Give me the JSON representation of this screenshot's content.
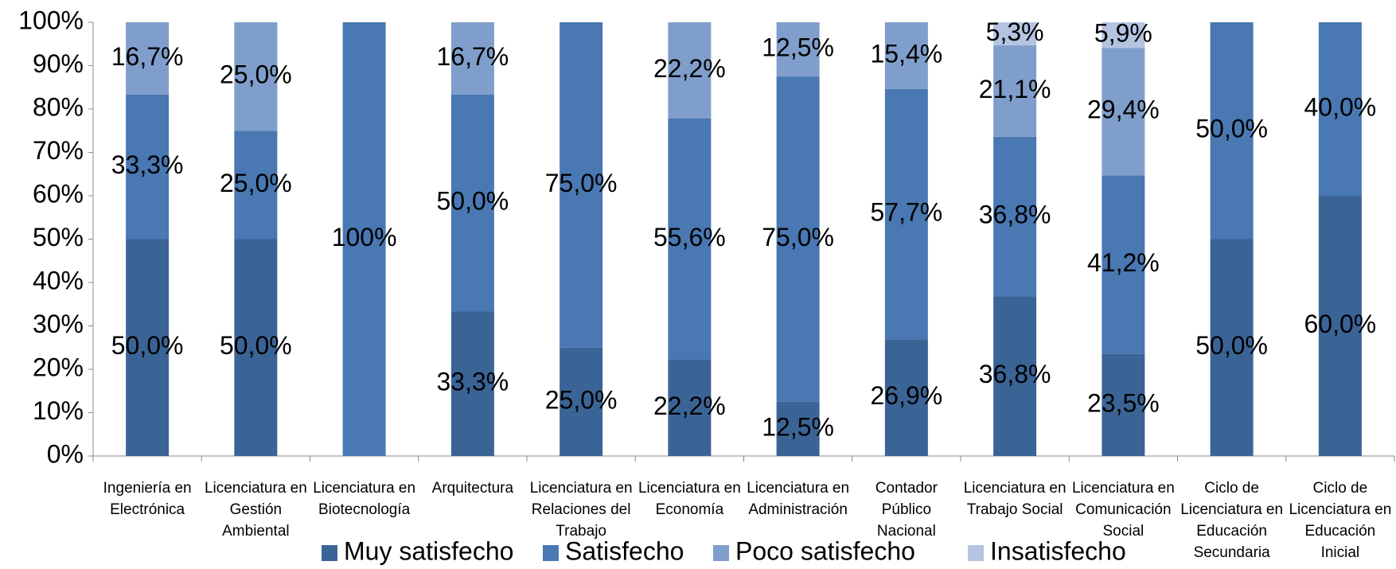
{
  "chart_data": {
    "type": "stacked_bar",
    "categories": [
      "Ingeniería en Electrónica",
      "Licenciatura en Gestión Ambiental",
      "Licenciatura en Biotecnología",
      "Arquitectura",
      "Licenciatura en Relaciones del Trabajo",
      "Licenciatura en Economía",
      "Licenciatura en Administración",
      "Contador Público Nacional",
      "Licenciatura en Trabajo Social",
      "Licenciatura en Comunicación Social",
      "Ciclo de Licenciatura en Educación Secundaria",
      "Ciclo de Licenciatura en Educación Inicial"
    ],
    "series": [
      {
        "name": "Muy satisfecho",
        "color": "#3b6496",
        "values": [
          50,
          50,
          null,
          33.3,
          25,
          22.2,
          12.5,
          26.9,
          36.8,
          23.5,
          50,
          60
        ],
        "value_labels": [
          "50,0%",
          "50,0%",
          null,
          "33,3%",
          "25,0%",
          "22,2%",
          "12,5%",
          "26,9%",
          "36,8%",
          "23,5%",
          "50,0%",
          "60,0%"
        ]
      },
      {
        "name": "Satisfecho",
        "color": "#4978b2",
        "values": [
          33.3,
          25,
          100,
          50,
          75,
          55.6,
          75,
          57.7,
          36.8,
          41.2,
          50,
          40
        ],
        "value_labels": [
          "33,3%",
          "25,0%",
          "100%",
          "50,0%",
          "75,0%",
          "55,6%",
          "75,0%",
          "57,7%",
          "36,8%",
          "41,2%",
          "50,0%",
          "40,0%"
        ]
      },
      {
        "name": "Poco satisfecho",
        "color": "#809ecb",
        "values": [
          16.7,
          25,
          null,
          16.7,
          null,
          22.2,
          12.5,
          15.4,
          21.1,
          29.4,
          null,
          null
        ],
        "value_labels": [
          "16,7%",
          "25,0%",
          null,
          "16,7%",
          null,
          "22,2%",
          "12,5%",
          "15,4%",
          "21,1%",
          "29,4%",
          null,
          null
        ]
      },
      {
        "name": "Insatisfecho",
        "color": "#b4c4e1",
        "values": [
          null,
          null,
          null,
          null,
          null,
          null,
          null,
          null,
          5.3,
          5.9,
          null,
          null
        ],
        "value_labels": [
          null,
          null,
          null,
          null,
          null,
          null,
          null,
          null,
          "5,3%",
          "5,9%",
          null,
          null
        ]
      }
    ],
    "ylim": [
      0,
      100
    ],
    "yticks": [
      {
        "value": 0,
        "label": "0%"
      },
      {
        "value": 10,
        "label": "10%"
      },
      {
        "value": 20,
        "label": "20%"
      },
      {
        "value": 30,
        "label": "30%"
      },
      {
        "value": 40,
        "label": "40%"
      },
      {
        "value": 50,
        "label": "50%"
      },
      {
        "value": 60,
        "label": "60%"
      },
      {
        "value": 70,
        "label": "70%"
      },
      {
        "value": 80,
        "label": "80%"
      },
      {
        "value": 90,
        "label": "90%"
      },
      {
        "value": 100,
        "label": "100%"
      }
    ],
    "grid": false,
    "legend": "bottom"
  }
}
